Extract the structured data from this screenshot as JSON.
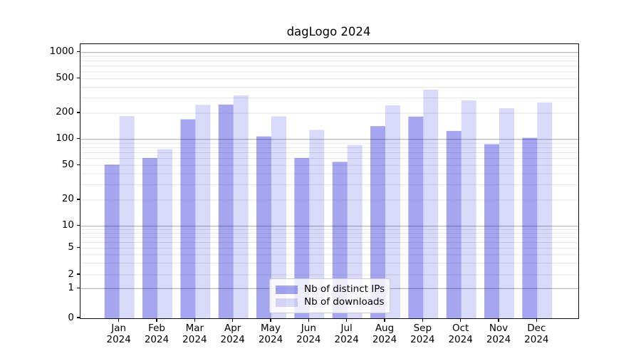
{
  "chart": {
    "title": "dagLogo 2024"
  },
  "chart_data": {
    "type": "bar",
    "title": "dagLogo 2024",
    "categories": [
      "Jan 2024",
      "Feb 2024",
      "Mar 2024",
      "Apr 2024",
      "May 2024",
      "Jun 2024",
      "Jul 2024",
      "Aug 2024",
      "Sep 2024",
      "Oct 2024",
      "Nov 2024",
      "Dec 2024"
    ],
    "series": [
      {
        "name": "Nb of distinct IPs",
        "color": "rgba(0,0,212,0.35)",
        "values": [
          51,
          61,
          170,
          252,
          108,
          61,
          55,
          142,
          183,
          125,
          88,
          104
        ]
      },
      {
        "name": "Nb of downloads",
        "color": "rgba(0,0,212,0.15)",
        "values": [
          185,
          77,
          250,
          322,
          184,
          128,
          86,
          246,
          375,
          281,
          228,
          267
        ]
      }
    ],
    "xlabel": "",
    "ylabel": "",
    "y_scale": "symlog",
    "y_ticks": [
      0,
      1,
      2,
      5,
      10,
      20,
      50,
      100,
      200,
      500,
      1000
    ],
    "ylim": [
      0,
      1250
    ],
    "grid": true,
    "grid_major_color": "#b0b0b0",
    "grid_minor_color": "#e7e7e7",
    "legend_position": "lower center"
  }
}
